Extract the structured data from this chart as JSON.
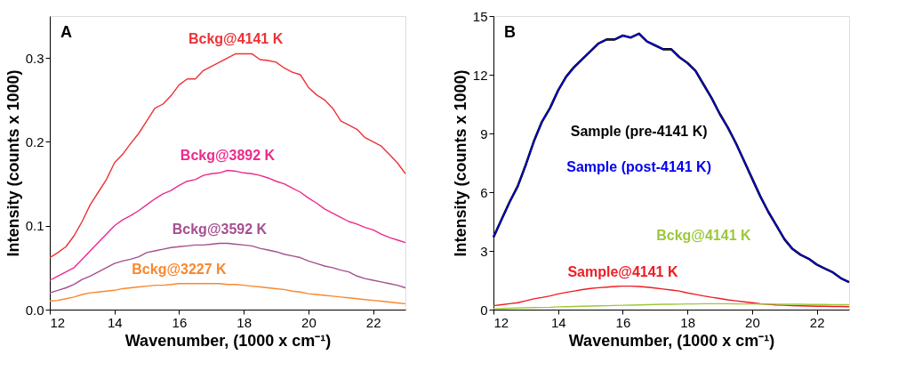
{
  "chart_data": [
    {
      "type": "line",
      "title": "A",
      "xlabel": "Wavenumber, (1000 x cm⁻¹)",
      "ylabel": "Intensity (counts x 1000)",
      "x": [
        12,
        12.25,
        12.5,
        12.75,
        13,
        13.25,
        13.5,
        13.75,
        14,
        14.25,
        14.5,
        14.75,
        15,
        15.25,
        15.5,
        15.75,
        16,
        16.25,
        16.5,
        16.75,
        17,
        17.25,
        17.5,
        17.75,
        18,
        18.25,
        18.5,
        18.75,
        19,
        19.25,
        19.5,
        19.75,
        20,
        20.25,
        20.5,
        20.75,
        21,
        21.25,
        21.5,
        21.75,
        22,
        22.25,
        22.5,
        22.75,
        23
      ],
      "series": [
        {
          "name": "Bckg@4141 K",
          "color": "#ed3237",
          "values": [
            0.062,
            0.068,
            0.075,
            0.088,
            0.105,
            0.125,
            0.14,
            0.155,
            0.175,
            0.185,
            0.198,
            0.21,
            0.225,
            0.24,
            0.245,
            0.255,
            0.268,
            0.275,
            0.275,
            0.285,
            0.29,
            0.295,
            0.3,
            0.305,
            0.305,
            0.305,
            0.298,
            0.297,
            0.295,
            0.288,
            0.283,
            0.28,
            0.265,
            0.256,
            0.25,
            0.24,
            0.225,
            0.22,
            0.215,
            0.205,
            0.2,
            0.195,
            0.185,
            0.175,
            0.162
          ]
        },
        {
          "name": "Bckg@3892 K",
          "color": "#ec2a8c",
          "values": [
            0.035,
            0.04,
            0.045,
            0.05,
            0.06,
            0.07,
            0.08,
            0.09,
            0.1,
            0.107,
            0.112,
            0.118,
            0.125,
            0.132,
            0.138,
            0.142,
            0.148,
            0.153,
            0.155,
            0.16,
            0.162,
            0.163,
            0.166,
            0.165,
            0.163,
            0.162,
            0.16,
            0.157,
            0.153,
            0.15,
            0.145,
            0.14,
            0.133,
            0.127,
            0.12,
            0.115,
            0.11,
            0.105,
            0.102,
            0.098,
            0.095,
            0.09,
            0.086,
            0.083,
            0.08
          ]
        },
        {
          "name": "Bckg@3592 K",
          "color": "#a54f8f",
          "values": [
            0.02,
            0.023,
            0.026,
            0.03,
            0.036,
            0.04,
            0.045,
            0.05,
            0.055,
            0.058,
            0.06,
            0.063,
            0.068,
            0.07,
            0.072,
            0.074,
            0.075,
            0.076,
            0.077,
            0.077,
            0.078,
            0.079,
            0.079,
            0.078,
            0.077,
            0.076,
            0.073,
            0.071,
            0.069,
            0.066,
            0.064,
            0.062,
            0.058,
            0.055,
            0.052,
            0.05,
            0.047,
            0.045,
            0.04,
            0.037,
            0.035,
            0.033,
            0.031,
            0.029,
            0.026
          ]
        },
        {
          "name": "Bckg@3227 K",
          "color": "#f7882f",
          "values": [
            0.01,
            0.011,
            0.013,
            0.015,
            0.018,
            0.02,
            0.021,
            0.022,
            0.023,
            0.025,
            0.026,
            0.027,
            0.028,
            0.029,
            0.029,
            0.03,
            0.031,
            0.031,
            0.031,
            0.031,
            0.031,
            0.031,
            0.03,
            0.03,
            0.029,
            0.028,
            0.027,
            0.026,
            0.025,
            0.024,
            0.022,
            0.021,
            0.019,
            0.018,
            0.017,
            0.016,
            0.015,
            0.014,
            0.013,
            0.012,
            0.011,
            0.01,
            0.009,
            0.008,
            0.007
          ]
        }
      ],
      "xlim": [
        12,
        23
      ],
      "xticks": [
        12,
        14,
        16,
        18,
        20,
        22
      ],
      "ylim": [
        0,
        0.35
      ],
      "yticks": [
        {
          "value": 0,
          "label": "0.0"
        },
        0.1,
        0.2,
        0.3
      ],
      "grid": false,
      "legend": false
    },
    {
      "type": "line",
      "title": "B",
      "xlabel": "Wavenumber, (1000 x cm⁻¹)",
      "ylabel": "Intensity (counts x 1000)",
      "x": [
        12,
        12.25,
        12.5,
        12.75,
        13,
        13.25,
        13.5,
        13.75,
        14,
        14.25,
        14.5,
        14.75,
        15,
        15.25,
        15.5,
        15.75,
        16,
        16.25,
        16.5,
        16.75,
        17,
        17.25,
        17.5,
        17.75,
        18,
        18.25,
        18.5,
        18.75,
        19,
        19.25,
        19.5,
        19.75,
        20,
        20.25,
        20.5,
        20.75,
        21,
        21.25,
        21.5,
        21.75,
        22,
        22.25,
        22.5,
        22.75,
        23
      ],
      "series": [
        {
          "name": "Sample (pre-4141 K)",
          "color": "#000000",
          "values": [
            3.7,
            4.6,
            5.5,
            6.3,
            7.4,
            8.6,
            9.6,
            10.3,
            11.2,
            11.9,
            12.4,
            12.8,
            13.2,
            13.6,
            13.8,
            13.8,
            14.0,
            13.9,
            14.1,
            13.7,
            13.5,
            13.3,
            13.3,
            12.9,
            12.6,
            12.2,
            11.5,
            10.8,
            10.0,
            9.3,
            8.5,
            7.6,
            6.7,
            5.8,
            5.0,
            4.3,
            3.6,
            3.1,
            2.8,
            2.6,
            2.3,
            2.1,
            1.9,
            1.6,
            1.4
          ]
        },
        {
          "name": "Sample (post-4141 K)",
          "color": "#0000ee",
          "values": [
            3.7,
            4.6,
            5.5,
            6.3,
            7.4,
            8.6,
            9.6,
            10.3,
            11.2,
            11.9,
            12.4,
            12.8,
            13.2,
            13.6,
            13.8,
            13.8,
            14.0,
            13.9,
            14.1,
            13.7,
            13.5,
            13.3,
            13.3,
            12.9,
            12.6,
            12.2,
            11.5,
            10.8,
            10.0,
            9.3,
            8.5,
            7.6,
            6.7,
            5.8,
            5.0,
            4.3,
            3.6,
            3.1,
            2.8,
            2.6,
            2.3,
            2.1,
            1.9,
            1.6,
            1.4
          ]
        },
        {
          "name": "Sample@4141 K",
          "color": "#ee1c24",
          "values": [
            0.2,
            0.25,
            0.3,
            0.35,
            0.45,
            0.55,
            0.62,
            0.7,
            0.8,
            0.88,
            0.95,
            1.02,
            1.08,
            1.12,
            1.15,
            1.18,
            1.2,
            1.2,
            1.18,
            1.15,
            1.1,
            1.05,
            1.0,
            0.95,
            0.85,
            0.78,
            0.7,
            0.63,
            0.57,
            0.5,
            0.45,
            0.4,
            0.35,
            0.3,
            0.27,
            0.24,
            0.22,
            0.2,
            0.19,
            0.18,
            0.17,
            0.17,
            0.16,
            0.16,
            0.15
          ]
        },
        {
          "name": "Bckg@4141 K",
          "color": "#9dc73c",
          "values": [
            0.05,
            0.06,
            0.07,
            0.08,
            0.09,
            0.1,
            0.11,
            0.12,
            0.14,
            0.15,
            0.16,
            0.17,
            0.18,
            0.19,
            0.2,
            0.21,
            0.22,
            0.23,
            0.24,
            0.25,
            0.26,
            0.27,
            0.27,
            0.28,
            0.29,
            0.29,
            0.3,
            0.3,
            0.3,
            0.3,
            0.29,
            0.29,
            0.29,
            0.28,
            0.28,
            0.28,
            0.27,
            0.27,
            0.27,
            0.26,
            0.26,
            0.26,
            0.25,
            0.25,
            0.25
          ]
        }
      ],
      "xlim": [
        12,
        23
      ],
      "xticks": [
        12,
        14,
        16,
        18,
        20,
        22
      ],
      "ylim": [
        0,
        15
      ],
      "yticks": [
        0,
        3,
        6,
        9,
        12,
        15
      ],
      "grid": false,
      "legend": false
    }
  ]
}
